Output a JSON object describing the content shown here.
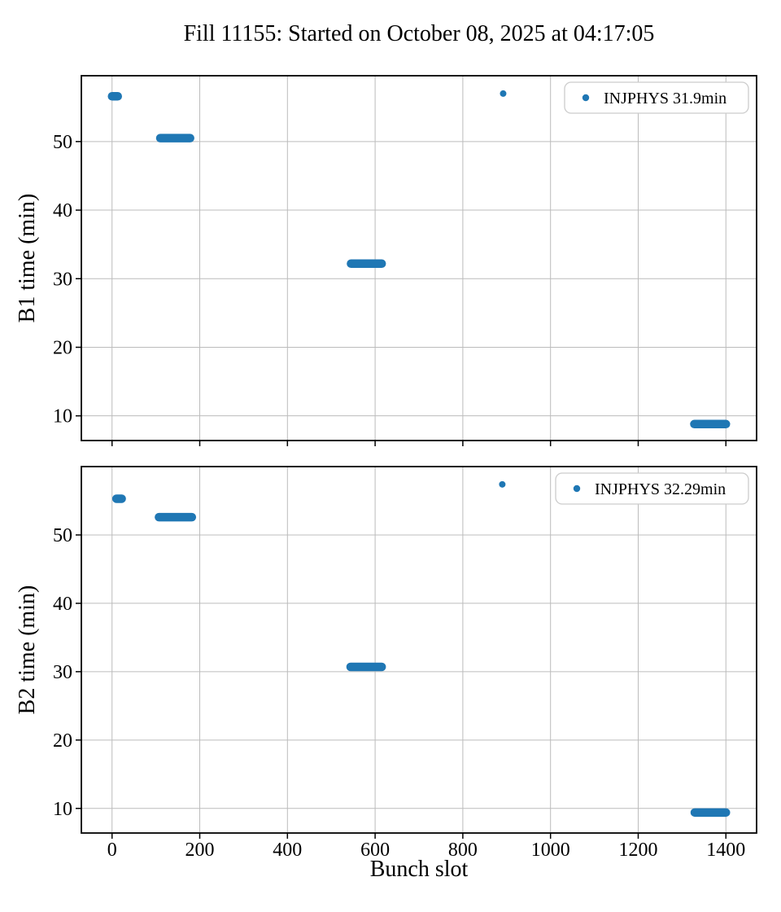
{
  "title": "Fill 11155: Started on October 08, 2025 at 04:17:05",
  "xlabel": "Bunch slot",
  "marker_color": "#1f77b4",
  "grid_color": "#bcbcbc",
  "legend_border_color": "#cccccc",
  "chart_data": [
    {
      "type": "scatter",
      "ylabel": "B1 time (min)",
      "legend": "INJPHYS 31.9min",
      "legend_position": "upper right",
      "grid": true,
      "xlim": [
        -70,
        1470
      ],
      "ylim": [
        6.4,
        59.6
      ],
      "xticks": [
        0,
        200,
        400,
        600,
        800,
        1000,
        1200,
        1400
      ],
      "yticks": [
        10,
        20,
        30,
        40,
        50
      ],
      "segments": [
        {
          "x_start": 0,
          "x_end": 13,
          "y": 56.6
        },
        {
          "x_start": 110,
          "x_end": 178,
          "y": 50.5
        },
        {
          "x_start": 545,
          "x_end": 615,
          "y": 32.2
        },
        {
          "x_start": 1328,
          "x_end": 1400,
          "y": 8.8
        }
      ],
      "points": [
        {
          "x": 892,
          "y": 57.0
        }
      ]
    },
    {
      "type": "scatter",
      "ylabel": "B2 time (min)",
      "legend": "INJPHYS 32.29min",
      "legend_position": "upper right",
      "grid": true,
      "xlim": [
        -70,
        1470
      ],
      "ylim": [
        6.4,
        60.0
      ],
      "xticks": [
        0,
        200,
        400,
        600,
        800,
        1000,
        1200,
        1400
      ],
      "yticks": [
        10,
        20,
        30,
        40,
        50
      ],
      "segments": [
        {
          "x_start": 10,
          "x_end": 22,
          "y": 55.3
        },
        {
          "x_start": 107,
          "x_end": 182,
          "y": 52.6
        },
        {
          "x_start": 544,
          "x_end": 615,
          "y": 30.7
        },
        {
          "x_start": 1329,
          "x_end": 1400,
          "y": 9.4
        }
      ],
      "points": [
        {
          "x": 890,
          "y": 57.4
        }
      ]
    }
  ]
}
